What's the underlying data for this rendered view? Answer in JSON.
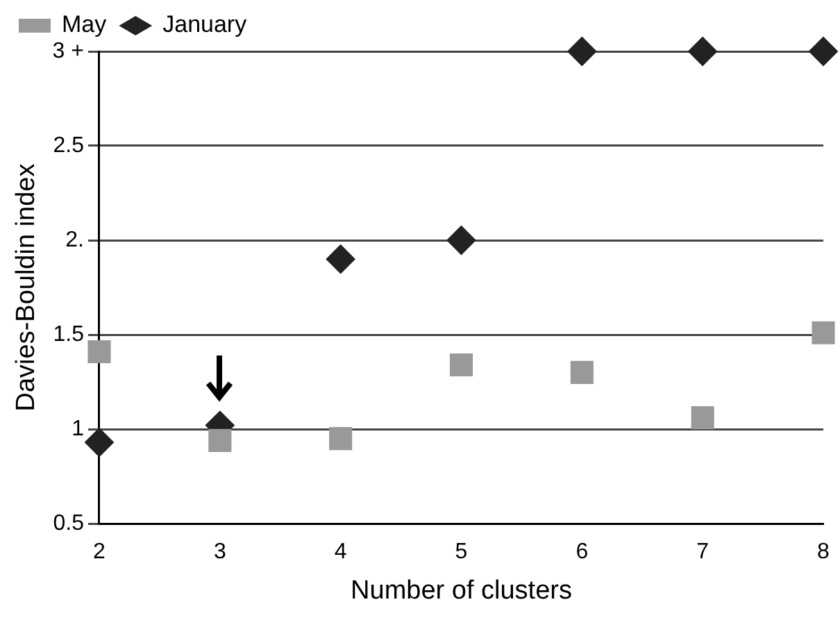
{
  "chart_data": {
    "type": "scatter",
    "xlabel": "Number of clusters",
    "ylabel": "Davies-Bouldin index",
    "x": [
      2,
      3,
      4,
      5,
      6,
      7,
      8
    ],
    "series": [
      {
        "name": "May",
        "color": "#999999",
        "marker": "square",
        "values": [
          1.41,
          0.94,
          0.95,
          1.34,
          1.3,
          1.06,
          1.51
        ]
      },
      {
        "name": "January",
        "color": "#222222",
        "marker": "diamond",
        "values": [
          0.93,
          1.02,
          1.9,
          2.0,
          3,
          3,
          3
        ]
      }
    ],
    "xlim": [
      2,
      8
    ],
    "xticks": [
      2,
      3,
      4,
      5,
      6,
      7,
      8
    ],
    "ylim": [
      0.5,
      3
    ],
    "yticks": [
      0.5,
      1,
      1.5,
      {
        "value": 2,
        "label": "2."
      },
      2.5,
      {
        "value": 3,
        "label": "3 +"
      }
    ],
    "grid": "y",
    "legend": "top left"
  }
}
